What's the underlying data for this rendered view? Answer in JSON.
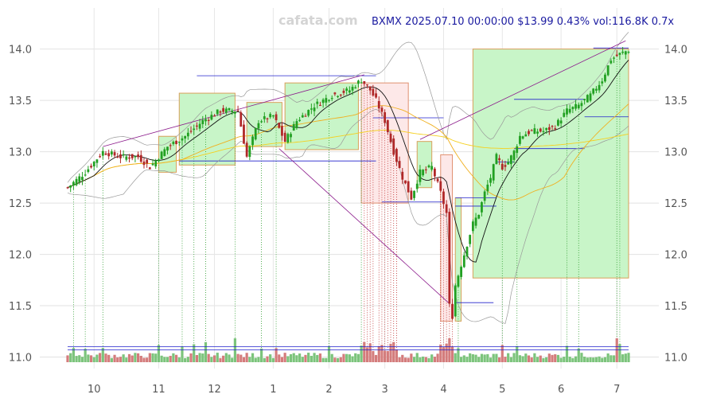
{
  "watermark": "cafata.com",
  "header": "BXMX 2025.07.10 00:00:00 $13.99 0.43% vol:116.8K 0.7x",
  "colors": {
    "up": "#22a022",
    "down": "#b02828",
    "ma_short": "#111111",
    "ma_mid": "#f0b020",
    "ma_long": "#f5d020",
    "band": "#999999",
    "level": "#2222cc",
    "trend": "#8b1a8b",
    "zone_up": "#c8f5c8",
    "zone_down": "#fde8e8"
  },
  "chart_data": {
    "type": "candlestick",
    "title": "",
    "ylim": [
      10.95,
      14.4
    ],
    "y_ticks": [
      {
        "v": 11.0,
        "label": "11.0"
      },
      {
        "v": 11.5,
        "label": "11.5"
      },
      {
        "v": 12.0,
        "label": "12.0"
      },
      {
        "v": 12.5,
        "label": "12.5"
      },
      {
        "v": 13.0,
        "label": "13.0"
      },
      {
        "v": 13.5,
        "label": "13.5"
      },
      {
        "v": 14.0,
        "label": "14.0"
      }
    ],
    "x_ticks": [
      {
        "i": 9,
        "label": "10"
      },
      {
        "i": 31,
        "label": "11"
      },
      {
        "i": 50,
        "label": "12"
      },
      {
        "i": 70,
        "label": "1"
      },
      {
        "i": 89,
        "label": "2"
      },
      {
        "i": 108,
        "label": "3"
      },
      {
        "i": 128,
        "label": "4"
      },
      {
        "i": 148,
        "label": "5"
      },
      {
        "i": 168,
        "label": "6"
      },
      {
        "i": 187,
        "label": "7"
      }
    ],
    "anchors": [
      [
        0,
        12.65
      ],
      [
        6,
        12.8
      ],
      [
        12,
        13.0
      ],
      [
        18,
        12.95
      ],
      [
        24,
        12.95
      ],
      [
        28,
        12.85
      ],
      [
        34,
        13.05
      ],
      [
        40,
        13.15
      ],
      [
        46,
        13.3
      ],
      [
        52,
        13.4
      ],
      [
        58,
        13.4
      ],
      [
        61,
        12.95
      ],
      [
        65,
        13.3
      ],
      [
        70,
        13.35
      ],
      [
        74,
        13.1
      ],
      [
        78,
        13.3
      ],
      [
        84,
        13.45
      ],
      [
        90,
        13.55
      ],
      [
        96,
        13.6
      ],
      [
        100,
        13.7
      ],
      [
        103,
        13.6
      ],
      [
        105,
        13.5
      ],
      [
        108,
        13.3
      ],
      [
        111,
        13.0
      ],
      [
        114,
        12.75
      ],
      [
        117,
        12.55
      ],
      [
        120,
        12.8
      ],
      [
        124,
        12.85
      ],
      [
        127,
        12.6
      ],
      [
        129,
        12.4
      ],
      [
        130,
        11.5
      ],
      [
        131,
        11.4
      ],
      [
        132,
        11.7
      ],
      [
        134,
        11.9
      ],
      [
        136,
        12.1
      ],
      [
        138,
        12.3
      ],
      [
        140,
        12.4
      ],
      [
        142,
        12.6
      ],
      [
        144,
        12.75
      ],
      [
        146,
        12.95
      ],
      [
        148,
        12.85
      ],
      [
        150,
        12.9
      ],
      [
        152,
        13.0
      ],
      [
        154,
        13.15
      ],
      [
        158,
        13.2
      ],
      [
        162,
        13.2
      ],
      [
        166,
        13.25
      ],
      [
        170,
        13.4
      ],
      [
        174,
        13.45
      ],
      [
        178,
        13.55
      ],
      [
        182,
        13.7
      ],
      [
        185,
        13.9
      ],
      [
        188,
        13.95
      ],
      [
        191,
        13.99
      ]
    ],
    "zones": [
      {
        "kind": "up",
        "i0": 31,
        "i1": 37,
        "y0": 12.8,
        "y1": 13.15
      },
      {
        "kind": "up",
        "i0": 38,
        "i1": 57,
        "y0": 12.87,
        "y1": 13.57
      },
      {
        "kind": "up",
        "i0": 61,
        "i1": 73,
        "y0": 13.05,
        "y1": 13.48
      },
      {
        "kind": "up",
        "i0": 74,
        "i1": 99,
        "y0": 13.02,
        "y1": 13.67
      },
      {
        "kind": "down",
        "i0": 100,
        "i1": 116,
        "y0": 12.5,
        "y1": 13.67
      },
      {
        "kind": "up",
        "i0": 119,
        "i1": 124,
        "y0": 12.65,
        "y1": 13.1
      },
      {
        "kind": "down",
        "i0": 127,
        "i1": 131,
        "y0": 11.35,
        "y1": 12.97
      },
      {
        "kind": "up",
        "i0": 132,
        "i1": 134,
        "y0": 11.35,
        "y1": 12.55
      },
      {
        "kind": "up",
        "i0": 138,
        "i1": 191,
        "y0": 11.77,
        "y1": 14.0
      }
    ],
    "levels": [
      {
        "i0": 44,
        "i1": 105,
        "y": 13.74
      },
      {
        "i0": 38,
        "i1": 105,
        "y": 12.91
      },
      {
        "i0": 104,
        "i1": 128,
        "y": 13.33
      },
      {
        "i0": 107,
        "i1": 128,
        "y": 12.51
      },
      {
        "i0": 132,
        "i1": 146,
        "y": 12.55
      },
      {
        "i0": 132,
        "i1": 146,
        "y": 12.47
      },
      {
        "i0": 132,
        "i1": 145,
        "y": 11.53
      },
      {
        "i0": 146,
        "i1": 152,
        "y": 12.9
      },
      {
        "i0": 152,
        "i1": 176,
        "y": 13.51
      },
      {
        "i0": 152,
        "i1": 176,
        "y": 13.03
      },
      {
        "i0": 176,
        "i1": 191,
        "y": 13.34
      },
      {
        "i0": 179,
        "i1": 191,
        "y": 14.01
      },
      {
        "i0": 0,
        "i1": 191,
        "y": 11.1
      },
      {
        "i0": 0,
        "i1": 191,
        "y": 11.07
      }
    ],
    "trendlines": [
      {
        "i0": 12,
        "y0": 13.05,
        "i1": 101,
        "y1": 13.75
      },
      {
        "i0": 72,
        "y0": 13.03,
        "i1": 130,
        "y1": 11.52
      },
      {
        "i0": 120,
        "y0": 13.12,
        "i1": 190,
        "y1": 14.08
      }
    ],
    "signals": [
      2,
      6,
      12,
      31,
      39,
      43,
      47,
      57,
      66,
      71,
      89,
      100,
      101,
      102,
      103,
      104,
      106,
      107,
      108,
      109,
      110,
      111,
      112,
      127,
      128,
      129,
      130,
      131,
      133,
      148,
      153,
      170,
      174,
      187,
      188
    ]
  }
}
